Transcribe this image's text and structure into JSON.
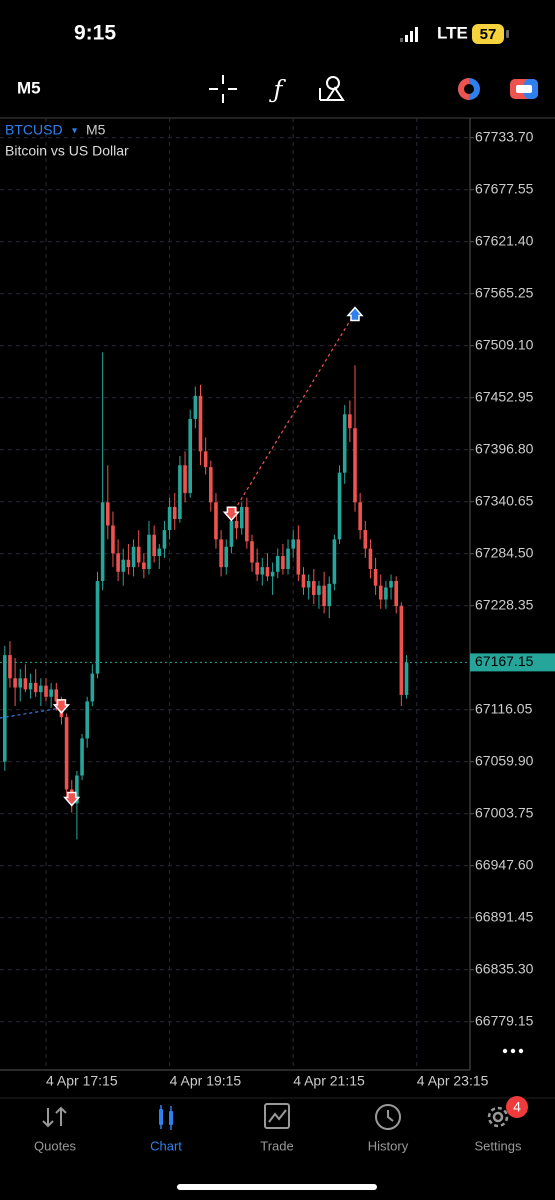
{
  "status_bar": {
    "time": "9:15",
    "network": "LTE",
    "battery": "57"
  },
  "toolbar": {
    "timeframe": "M5"
  },
  "chart_data": {
    "type": "candlestick",
    "symbol": "BTCUSD",
    "timeframe": "M5",
    "subtitle": "Bitcoin vs US Dollar",
    "categories": [
      null,
      null,
      null,
      null,
      null,
      null,
      null,
      null,
      "4 Apr 17:15",
      null,
      null,
      null,
      null,
      null,
      null,
      null,
      null,
      null,
      null,
      null,
      null,
      null,
      null,
      null,
      null,
      null,
      null,
      null,
      null,
      null,
      null,
      null,
      "4 Apr 19:15",
      null,
      null,
      null,
      null,
      null,
      null,
      null,
      null,
      null,
      null,
      null,
      null,
      null,
      null,
      null,
      null,
      null,
      null,
      null,
      null,
      null,
      null,
      null,
      "4 Apr 21:15",
      null,
      null,
      null,
      null,
      null,
      null,
      null,
      null,
      null,
      null,
      null,
      null,
      null,
      null,
      null,
      null,
      null,
      null,
      null,
      null,
      null,
      null,
      null,
      "4 Apr 23:15",
      null,
      null,
      null,
      null,
      null,
      null,
      null,
      null,
      null
    ],
    "open": [
      67060,
      67175,
      67150,
      67140,
      67150,
      67138,
      67145,
      67135,
      67142,
      67130,
      67138,
      67125,
      67108,
      67030,
      67015,
      67045,
      67085,
      67125,
      67155,
      67255,
      67340,
      67315,
      67285,
      67265,
      67278,
      67270,
      67292,
      67275,
      67268,
      67305,
      67282,
      67290,
      67310,
      67335,
      67322,
      67380,
      67350,
      67430,
      67455,
      67395,
      67378,
      67340,
      67300,
      67270,
      67292,
      67320,
      67312,
      67335,
      67298,
      67275,
      67262,
      67270,
      67260,
      67265,
      67282,
      67268,
      67290,
      67300,
      67262,
      67248,
      67255,
      67240,
      67250,
      67228,
      67252,
      67300,
      67372,
      67435,
      67420,
      67340,
      67310,
      67290,
      67268,
      67250,
      67235,
      67248,
      67255,
      67228,
      67132,
      null,
      null,
      null,
      null,
      null,
      null,
      null,
      null,
      null,
      null,
      null
    ],
    "high": [
      67185,
      67190,
      67172,
      67160,
      67165,
      67155,
      67160,
      67150,
      67150,
      67145,
      67145,
      67130,
      67112,
      67040,
      67050,
      67090,
      67130,
      67165,
      67265,
      67502,
      67380,
      67330,
      67300,
      67290,
      67295,
      67300,
      67310,
      67285,
      67320,
      67315,
      67295,
      67320,
      67345,
      67350,
      67390,
      67395,
      67440,
      67465,
      67467,
      67410,
      67385,
      67350,
      67310,
      67300,
      67330,
      67335,
      67340,
      67345,
      67305,
      67290,
      67280,
      67285,
      67275,
      67290,
      67295,
      67300,
      67310,
      67315,
      67270,
      67262,
      67268,
      67255,
      67265,
      67260,
      67305,
      67380,
      67445,
      67450,
      67488,
      67350,
      67320,
      67300,
      67280,
      67262,
      67255,
      67262,
      67260,
      67232,
      67175,
      null,
      null,
      null,
      null,
      null,
      null,
      null,
      null,
      null,
      null,
      null
    ],
    "low": [
      67050,
      67140,
      67120,
      67125,
      67135,
      67128,
      67130,
      67120,
      67125,
      67118,
      67115,
      67100,
      67020,
      67005,
      66976,
      67040,
      67075,
      67120,
      67150,
      67245,
      67300,
      67270,
      67255,
      67250,
      67262,
      67260,
      67270,
      67258,
      67262,
      67275,
      67268,
      67280,
      67300,
      67310,
      67318,
      67340,
      67345,
      67420,
      67380,
      67370,
      67330,
      67290,
      67260,
      67262,
      67285,
      67300,
      67305,
      67290,
      67265,
      67255,
      67250,
      67255,
      67240,
      67258,
      67262,
      67262,
      67280,
      67255,
      67240,
      67235,
      67230,
      67225,
      67220,
      67215,
      67245,
      67295,
      67360,
      67405,
      67330,
      67300,
      67280,
      67258,
      67240,
      67225,
      67225,
      67235,
      67220,
      67120,
      67128,
      null,
      null,
      null,
      null,
      null,
      null,
      null,
      null,
      null,
      null,
      null
    ],
    "close": [
      67175,
      67150,
      67140,
      67150,
      67138,
      67145,
      67135,
      67142,
      67130,
      67138,
      67125,
      67108,
      67030,
      67015,
      67045,
      67085,
      67125,
      67155,
      67255,
      67340,
      67315,
      67285,
      67265,
      67278,
      67270,
      67292,
      67275,
      67268,
      67305,
      67282,
      67290,
      67310,
      67335,
      67322,
      67380,
      67350,
      67430,
      67455,
      67395,
      67378,
      67340,
      67300,
      67270,
      67292,
      67320,
      67312,
      67335,
      67298,
      67275,
      67262,
      67270,
      67260,
      67265,
      67282,
      67268,
      67290,
      67300,
      67262,
      67248,
      67255,
      67240,
      67250,
      67228,
      67252,
      67300,
      67372,
      67435,
      67420,
      67340,
      67310,
      67290,
      67268,
      67250,
      67235,
      67248,
      67255,
      67228,
      67132,
      67167.15,
      null,
      null,
      null,
      null,
      null,
      null,
      null,
      null,
      null,
      null,
      null
    ],
    "up_color": "#26a69a",
    "down_color": "#ef5350",
    "ylim": [
      66727,
      67755
    ],
    "yticks": [
      {
        "value": 67733.7,
        "label": "67733.70"
      },
      67677.55,
      {
        "value": 67621.4,
        "label": "67621.40"
      },
      67565.25,
      {
        "value": 67509.1,
        "label": "67509.10"
      },
      67452.95,
      {
        "value": 67396.8,
        "label": "67396.80"
      },
      67340.65,
      {
        "value": 67284.5,
        "label": "67284.50"
      },
      67228.35,
      67116.05,
      {
        "value": 67059.9,
        "label": "67059.90"
      },
      67003.75,
      {
        "value": 66947.6,
        "label": "66947.60"
      },
      66891.45,
      {
        "value": 66835.3,
        "label": "66835.30"
      },
      66779.15
    ],
    "grid": true,
    "last_price": 67167.15,
    "markers": [
      {
        "x": 11,
        "y": 67118,
        "color": "#ef5350",
        "direction": "down"
      },
      {
        "x": 13,
        "y": 67018,
        "color": "#ef5350",
        "direction": "down"
      },
      {
        "x": 44,
        "y": 67326,
        "color": "#ef5350",
        "direction": "down"
      },
      {
        "x": 68,
        "y": 67545,
        "color": "#2f80ed",
        "direction": "up"
      }
    ],
    "lines": [
      {
        "x": [
          -1,
          11
        ],
        "y": [
          67107,
          67118
        ],
        "color": "#2f80ed"
      },
      {
        "x": [
          44,
          68
        ],
        "y": [
          67326,
          67545
        ],
        "color": "#ef5350"
      }
    ]
  },
  "tab_bar": {
    "tabs": [
      {
        "label": "Quotes"
      },
      {
        "label": "Chart"
      },
      {
        "label": "Trade"
      },
      {
        "label": "History"
      },
      {
        "label": "Settings"
      }
    ],
    "badge": "4"
  }
}
